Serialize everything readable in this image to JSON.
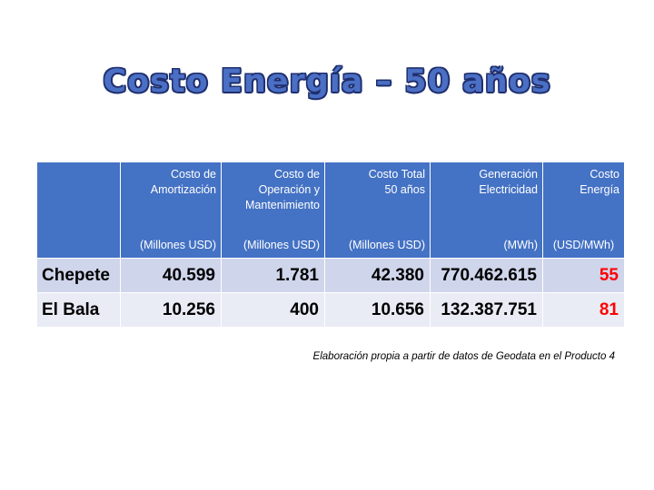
{
  "slide": {
    "title": "Costo Energía – 50 años",
    "source_note": "Elaboración propia a partir de datos de Geodata en el Producto 4"
  },
  "table": {
    "headers": [
      {
        "label": "",
        "unit": ""
      },
      {
        "label": "Costo de\nAmortización",
        "unit": "(Millones USD)"
      },
      {
        "label": "Costo de\nOperación y\nMantenimiento",
        "unit": "(Millones USD)"
      },
      {
        "label": "Costo Total\n50 años",
        "unit": "(Millones USD)"
      },
      {
        "label": "Generación\nElectricidad",
        "unit": "(MWh)"
      },
      {
        "label": "Costo\nEnergía",
        "unit": "(USD/MWh)"
      }
    ],
    "rows": [
      {
        "name": "Chepete",
        "amortizacion": "40.599",
        "operacion": "1.781",
        "total": "42.380",
        "generacion": "770.462.615",
        "costo_energia": "55"
      },
      {
        "name": "El Bala",
        "amortizacion": "10.256",
        "operacion": "400",
        "total": "10.656",
        "generacion": "132.387.751",
        "costo_energia": "81"
      }
    ]
  },
  "colors": {
    "header_bg": "#4472c4",
    "row_odd": "#cfd5ea",
    "row_even": "#e9ebf5",
    "highlight": "#ff0000",
    "title": "#4a6fc4"
  }
}
